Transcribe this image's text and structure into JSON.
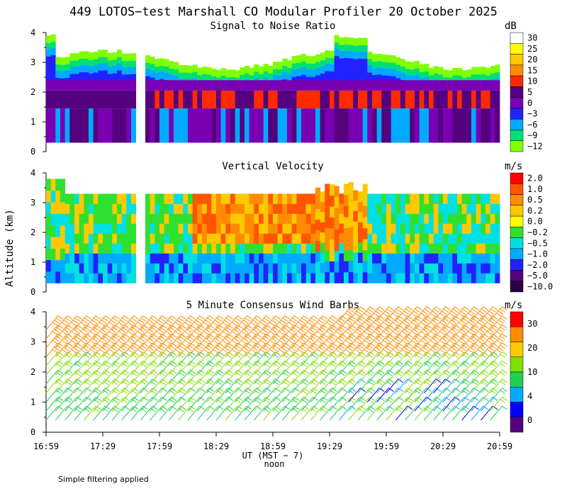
{
  "figure": {
    "title": "449 LOTOS−test Marshall CO Modular Profiler 20 October 2025",
    "ylabel": "Altitude (km)",
    "xlabel": "UT  (MST − 7)",
    "noon_label": "noon",
    "footer_note": "Simple filtering applied",
    "x_tick_labels": [
      "16:59",
      "17:29",
      "17:59",
      "18:29",
      "18:59",
      "19:29",
      "19:59",
      "20:29",
      "20:59"
    ]
  },
  "chart_data": [
    {
      "id": "snr",
      "type": "heatmap",
      "title": "Signal to Noise Ratio",
      "xlabel": "UT (MST - 7)",
      "ylabel": "Altitude (km)",
      "x_range_minutes": [
        0,
        240
      ],
      "ylim": [
        0,
        4
      ],
      "y_ticks": [
        0,
        1,
        2,
        3,
        4
      ],
      "data_gap_minutes": [
        47,
        52
      ],
      "colorbar": {
        "unit": "dB",
        "labels": [
          "30",
          "25",
          "20",
          "15",
          "10",
          "5",
          "0",
          "−3",
          "−6",
          "−9",
          "−12"
        ],
        "colors": [
          "#ffffff",
          "#ffff00",
          "#ffc800",
          "#ff8c00",
          "#ff2a00",
          "#55007f",
          "#7a00b4",
          "#2222ff",
          "#00aaff",
          "#00e070",
          "#80ff00"
        ]
      },
      "profile": [
        {
          "min_alt_km": 3.2,
          "value": "-12 to -9 dB (top layer)"
        },
        {
          "min_alt_km": 2.6,
          "value": "-6 to -3 dB"
        },
        {
          "min_alt_km": 1.5,
          "value": "0 to 10 dB, peaks near 10 dB around 2 km"
        },
        {
          "min_alt_km": 0.3,
          "value": "5 to 10 dB with weaker streaks"
        }
      ]
    },
    {
      "id": "vertical_velocity",
      "type": "heatmap",
      "title": "Vertical Velocity",
      "xlabel": "UT (MST - 7)",
      "ylabel": "Altitude (km)",
      "x_range_minutes": [
        0,
        240
      ],
      "ylim": [
        0,
        4
      ],
      "y_ticks": [
        0,
        1,
        2,
        3,
        4
      ],
      "data_gap_minutes": [
        47,
        52
      ],
      "colorbar": {
        "unit": "m/s",
        "labels": [
          "2.0",
          "1.0",
          "0.5",
          "0.2",
          "0.0",
          "−0.2",
          "−0.5",
          "−1.0",
          "−2.0",
          "−5.0",
          "−10.0"
        ],
        "colors": [
          "#ff0000",
          "#ff5500",
          "#ff8c00",
          "#ffc800",
          "#ffff00",
          "#30e030",
          "#00e0e0",
          "#00aaff",
          "#2222ff",
          "#55007f",
          "#2a0040"
        ]
      },
      "description": "Mostly 0.2 to 1.0 m/s (orange) between 1.5 and 3.3 km after 18:00 UT; -0.2 to -1.0 m/s (green/blue) near the surface and late in the day above 2 km"
    },
    {
      "id": "wind_barbs",
      "type": "scatter",
      "title": "5 Minute Consensus Wind Barbs",
      "xlabel": "UT (MST - 7)",
      "ylabel": "Altitude (km)",
      "x_range_minutes": [
        0,
        240
      ],
      "ylim": [
        0,
        4
      ],
      "y_ticks": [
        0,
        1,
        2,
        3,
        4
      ],
      "colorbar": {
        "unit": "m/s",
        "labels": [
          "30",
          "20",
          "10",
          "4",
          "0"
        ],
        "colors": [
          "#ff0000",
          "#ff8c00",
          "#ffc800",
          "#80e000",
          "#20d050",
          "#00aaff",
          "#0000ff",
          "#55007f"
        ]
      },
      "speed_levels_mps": [
        {
          "min_alt_km": 2.5,
          "speed_mps": 20
        },
        {
          "min_alt_km": 1.2,
          "speed_mps": 10
        },
        {
          "min_alt_km": 0.2,
          "speed_mps": 8
        }
      ],
      "note": "Slower winds (0-4 m/s, blue/purple) near 0.5-1.5 km after 19:30 UT"
    }
  ]
}
